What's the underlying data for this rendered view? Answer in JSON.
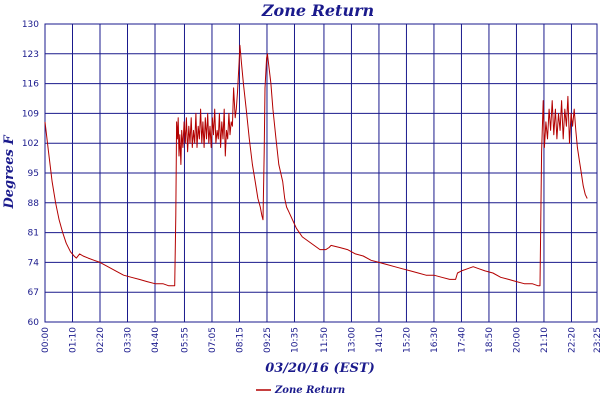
{
  "colors": {
    "grid": "#1a1a8c",
    "text": "#1a1a8c",
    "series": "#b30000"
  },
  "chart_data": {
    "type": "line",
    "title": "Zone Return",
    "xlabel": "03/20/16 (EST)",
    "ylabel": "Degrees F",
    "ylim": [
      60,
      130
    ],
    "yticks": [
      60,
      67,
      74,
      81,
      88,
      95,
      102,
      109,
      116,
      123,
      130
    ],
    "xlim": [
      "00:00",
      "23:25"
    ],
    "xtick_labels": [
      "00:00",
      "01:10",
      "02:20",
      "03:30",
      "04:40",
      "05:55",
      "07:05",
      "08:15",
      "09:25",
      "10:35",
      "11:50",
      "13:00",
      "14:10",
      "15:20",
      "16:30",
      "17:40",
      "18:50",
      "20:00",
      "21:10",
      "22:20",
      "23:25"
    ],
    "grid": true,
    "legend": {
      "position": "bottom-center",
      "entries": [
        "Zone Return"
      ]
    },
    "series": [
      {
        "name": "Zone Return",
        "points": [
          [
            "00:00",
            107
          ],
          [
            "00:09",
            100
          ],
          [
            "00:18",
            93
          ],
          [
            "00:27",
            88
          ],
          [
            "00:36",
            84
          ],
          [
            "00:45",
            81
          ],
          [
            "00:54",
            78.5
          ],
          [
            "01:05",
            76.5
          ],
          [
            "01:14",
            75.5
          ],
          [
            "01:20",
            75
          ],
          [
            "01:28",
            76
          ],
          [
            "01:37",
            75.5
          ],
          [
            "01:50",
            75
          ],
          [
            "02:05",
            74.5
          ],
          [
            "02:20",
            74
          ],
          [
            "02:40",
            73
          ],
          [
            "03:00",
            72
          ],
          [
            "03:20",
            71
          ],
          [
            "03:40",
            70.5
          ],
          [
            "04:00",
            70
          ],
          [
            "04:20",
            69.5
          ],
          [
            "04:40",
            69
          ],
          [
            "05:00",
            69
          ],
          [
            "05:15",
            68.5
          ],
          [
            "05:30",
            68.5
          ],
          [
            "05:33",
            85
          ],
          [
            "05:35",
            107
          ],
          [
            "05:37",
            103
          ],
          [
            "05:39",
            108
          ],
          [
            "05:41",
            99
          ],
          [
            "05:43",
            104
          ],
          [
            "05:46",
            97
          ],
          [
            "05:48",
            105
          ],
          [
            "05:51",
            101
          ],
          [
            "05:54",
            107
          ],
          [
            "05:57",
            102
          ],
          [
            "06:00",
            108
          ],
          [
            "06:03",
            100
          ],
          [
            "06:06",
            106
          ],
          [
            "06:09",
            102
          ],
          [
            "06:12",
            108
          ],
          [
            "06:15",
            101
          ],
          [
            "06:18",
            105
          ],
          [
            "06:21",
            102
          ],
          [
            "06:24",
            109
          ],
          [
            "06:27",
            101
          ],
          [
            "06:30",
            106
          ],
          [
            "06:33",
            103
          ],
          [
            "06:36",
            110
          ],
          [
            "06:39",
            102
          ],
          [
            "06:42",
            107
          ],
          [
            "06:45",
            101
          ],
          [
            "06:48",
            108
          ],
          [
            "06:51",
            103
          ],
          [
            "06:54",
            109
          ],
          [
            "06:57",
            102
          ],
          [
            "07:00",
            106
          ],
          [
            "07:03",
            101
          ],
          [
            "07:06",
            108
          ],
          [
            "07:09",
            104
          ],
          [
            "07:12",
            110
          ],
          [
            "07:15",
            102
          ],
          [
            "07:18",
            105
          ],
          [
            "07:21",
            103
          ],
          [
            "07:24",
            109
          ],
          [
            "07:27",
            101
          ],
          [
            "07:30",
            107
          ],
          [
            "07:33",
            103
          ],
          [
            "07:36",
            110
          ],
          [
            "07:39",
            99
          ],
          [
            "07:42",
            105
          ],
          [
            "07:45",
            103
          ],
          [
            "07:48",
            109
          ],
          [
            "07:51",
            104
          ],
          [
            "07:54",
            107
          ],
          [
            "07:57",
            106
          ],
          [
            "08:00",
            115
          ],
          [
            "08:04",
            108
          ],
          [
            "08:07",
            110
          ],
          [
            "08:10",
            114
          ],
          [
            "08:14",
            121
          ],
          [
            "08:16",
            125
          ],
          [
            "08:20",
            121
          ],
          [
            "08:25",
            116
          ],
          [
            "08:32",
            110
          ],
          [
            "08:40",
            103
          ],
          [
            "08:48",
            97
          ],
          [
            "08:55",
            93
          ],
          [
            "09:02",
            89
          ],
          [
            "09:08",
            87
          ],
          [
            "09:12",
            85
          ],
          [
            "09:15",
            84
          ],
          [
            "09:18",
            100
          ],
          [
            "09:20",
            115
          ],
          [
            "09:24",
            122
          ],
          [
            "09:26",
            123
          ],
          [
            "09:30",
            120
          ],
          [
            "09:35",
            116
          ],
          [
            "09:40",
            110
          ],
          [
            "09:48",
            103
          ],
          [
            "09:55",
            97
          ],
          [
            "10:05",
            93
          ],
          [
            "10:10",
            89
          ],
          [
            "10:15",
            87
          ],
          [
            "10:20",
            86
          ],
          [
            "10:30",
            84
          ],
          [
            "10:40",
            82
          ],
          [
            "10:55",
            80
          ],
          [
            "11:10",
            79
          ],
          [
            "11:25",
            78
          ],
          [
            "11:40",
            77
          ],
          [
            "11:55",
            77
          ],
          [
            "12:03",
            77.5
          ],
          [
            "12:08",
            78
          ],
          [
            "12:30",
            77.5
          ],
          [
            "12:50",
            77
          ],
          [
            "13:10",
            76
          ],
          [
            "13:30",
            75.5
          ],
          [
            "13:50",
            74.5
          ],
          [
            "14:10",
            74
          ],
          [
            "14:30",
            73.5
          ],
          [
            "14:50",
            73
          ],
          [
            "15:10",
            72.5
          ],
          [
            "15:30",
            72
          ],
          [
            "15:50",
            71.5
          ],
          [
            "16:10",
            71
          ],
          [
            "16:30",
            71
          ],
          [
            "16:50",
            70.5
          ],
          [
            "17:10",
            70
          ],
          [
            "17:25",
            70
          ],
          [
            "17:30",
            71.5
          ],
          [
            "17:40",
            72
          ],
          [
            "17:55",
            72.5
          ],
          [
            "18:10",
            73
          ],
          [
            "18:25",
            72.5
          ],
          [
            "18:40",
            72
          ],
          [
            "19:00",
            71.5
          ],
          [
            "19:20",
            70.5
          ],
          [
            "19:40",
            70
          ],
          [
            "20:00",
            69.5
          ],
          [
            "20:20",
            69
          ],
          [
            "20:40",
            69
          ],
          [
            "20:55",
            68.5
          ],
          [
            "21:00",
            68.5
          ],
          [
            "21:04",
            100
          ],
          [
            "21:08",
            112
          ],
          [
            "21:11",
            101
          ],
          [
            "21:15",
            107
          ],
          [
            "21:19",
            103
          ],
          [
            "21:23",
            110
          ],
          [
            "21:27",
            105
          ],
          [
            "21:31",
            112
          ],
          [
            "21:35",
            104
          ],
          [
            "21:39",
            110
          ],
          [
            "21:43",
            103
          ],
          [
            "21:47",
            109
          ],
          [
            "21:51",
            105
          ],
          [
            "21:55",
            112
          ],
          [
            "21:59",
            103
          ],
          [
            "22:03",
            110
          ],
          [
            "22:07",
            106
          ],
          [
            "22:11",
            113
          ],
          [
            "22:15",
            102
          ],
          [
            "22:19",
            109
          ],
          [
            "22:23",
            106
          ],
          [
            "22:27",
            110
          ],
          [
            "22:31",
            105
          ],
          [
            "22:35",
            101
          ],
          [
            "22:40",
            98
          ],
          [
            "22:45",
            95
          ],
          [
            "22:50",
            92
          ],
          [
            "22:55",
            90
          ],
          [
            "23:00",
            89
          ]
        ]
      }
    ]
  }
}
